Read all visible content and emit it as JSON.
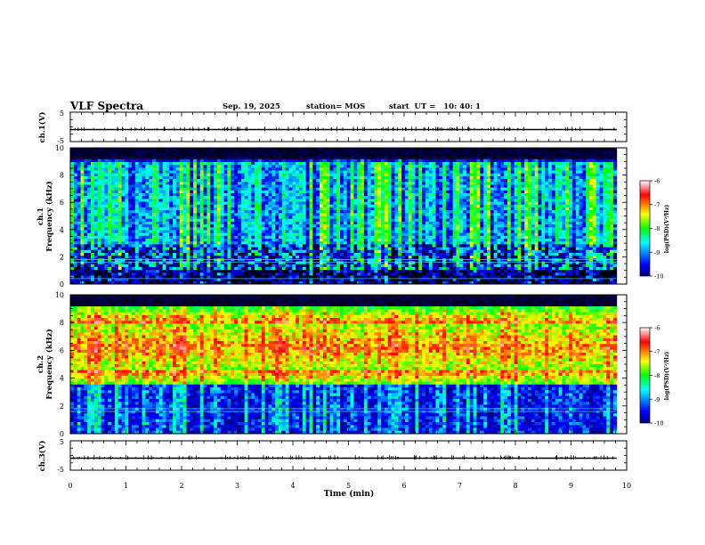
{
  "header": {
    "title": "VLF Spectra",
    "date": "Sep. 19, 2025",
    "station": "station= MOS",
    "start": "start  UT =   10: 40: 1"
  },
  "chart_data": [
    {
      "type": "line",
      "name": "ch1-waveform",
      "ylabel": "ch.1(V)",
      "ylim": [
        -5,
        5
      ],
      "y_ticks": [
        "5",
        "-5"
      ],
      "baseline_value": 0
    },
    {
      "type": "heatmap",
      "name": "ch1-spectrogram",
      "ylabel": "ch.1\nFrequency (kHz)",
      "ylim": [
        0,
        10
      ],
      "y_ticks": [
        "0",
        "2",
        "4",
        "6",
        "8",
        "10"
      ],
      "colorbar": {
        "label": "log(PSD)(V²/Hz)",
        "ticks": [
          "-6",
          "-7",
          "-8",
          "-9",
          "-10"
        ],
        "range": [
          -10,
          -6
        ]
      },
      "dominant_band_khz": [
        1,
        9
      ],
      "interference_lines_khz": [
        0.4,
        1.6,
        1.8
      ]
    },
    {
      "type": "heatmap",
      "name": "ch2-spectrogram",
      "ylabel": "ch.2\nFrequency (kHz)",
      "ylim": [
        0,
        10
      ],
      "y_ticks": [
        "0",
        "2",
        "4",
        "6",
        "8",
        "10"
      ],
      "colorbar": {
        "label": "log(PSD)(V²/Hz)",
        "ticks": [
          "-6",
          "-7",
          "-8",
          "-9",
          "-10"
        ],
        "range": [
          -10,
          -6
        ]
      },
      "dominant_band_khz": [
        4.5,
        8
      ],
      "interference_lines_khz": [
        1.6,
        1.8
      ]
    },
    {
      "type": "line",
      "name": "ch3-waveform",
      "ylabel": "ch.3(V)",
      "ylim": [
        -5,
        5
      ],
      "y_ticks": [
        "5",
        "-5"
      ],
      "baseline_value": 0
    }
  ],
  "x_axis": {
    "label": "Time (min)",
    "range": [
      0,
      10
    ],
    "ticks": [
      "0",
      "1",
      "2",
      "3",
      "4",
      "5",
      "6",
      "7",
      "8",
      "9",
      "10"
    ],
    "data_end_min": 9.82
  },
  "colors": {
    "colormap": [
      "#000000",
      "#00007f",
      "#0000ff",
      "#00ffff",
      "#00ff00",
      "#ffff00",
      "#ff0000",
      "#ffffff"
    ]
  }
}
